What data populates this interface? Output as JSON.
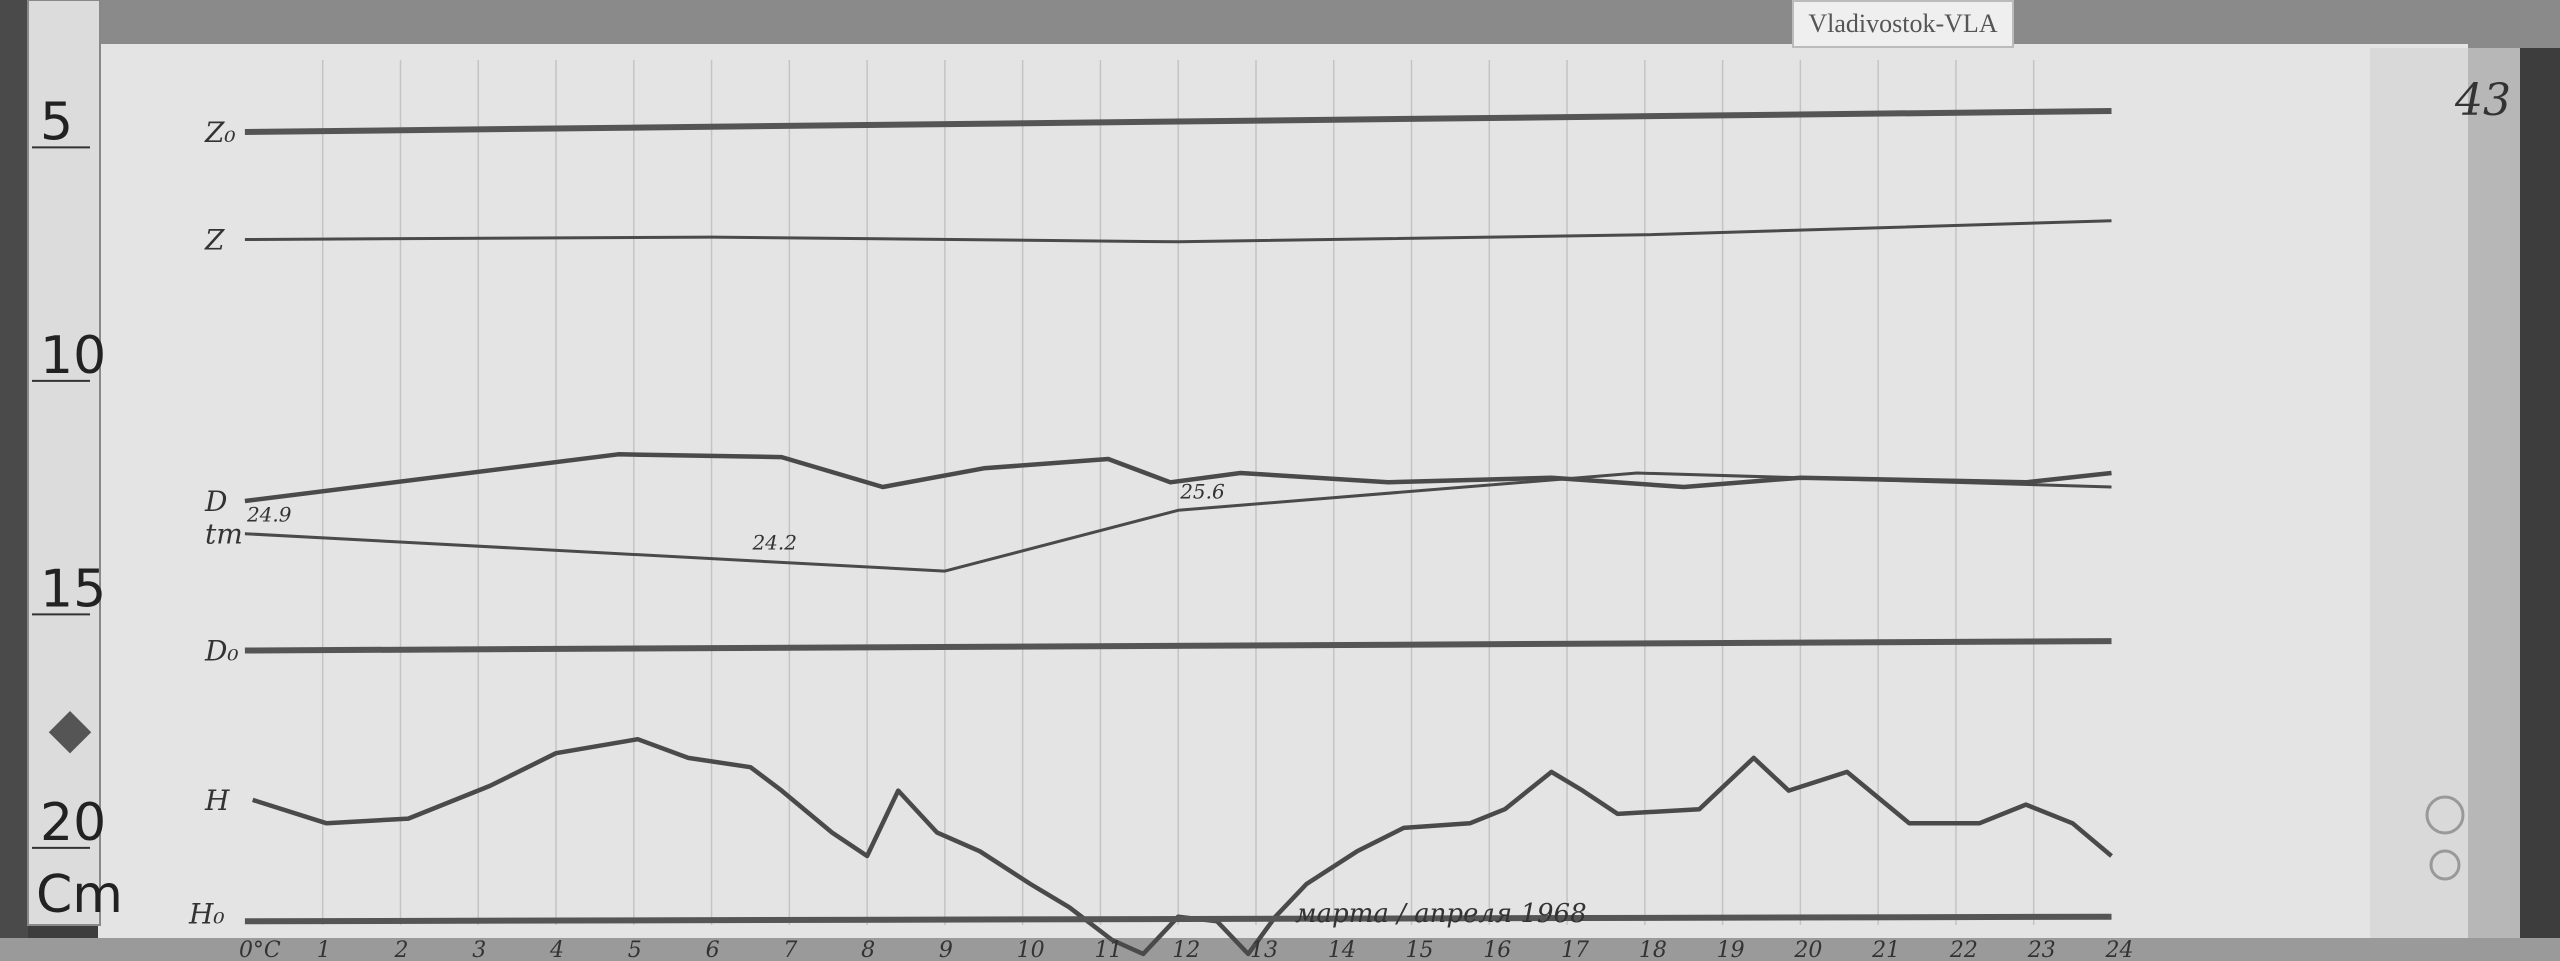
{
  "station_label": "Vladivostok-VLA",
  "page_number": "43",
  "ruler": {
    "ticks": [
      "5",
      "10",
      "15",
      "20"
    ],
    "unit": "Cm"
  },
  "date_note": "марта / апреля 1968",
  "colors": {
    "paper": "#e4e4e4",
    "trace": "#4a4a4a",
    "background": "#3a3a3a"
  },
  "chart_data": {
    "type": "line",
    "title": "",
    "xlabel": "",
    "ylabel": "",
    "x_unit": "hours",
    "y_unit": "cm (ruler)",
    "xlim": [
      0,
      24
    ],
    "ylim": [
      4,
      23
    ],
    "grid": true,
    "x_ticks": [
      "0°C",
      "1",
      "2",
      "3",
      "4",
      "5",
      "6",
      "7",
      "8",
      "9",
      "10",
      "11",
      "12",
      "13",
      "14",
      "15",
      "16",
      "17",
      "18",
      "19",
      "20",
      "21",
      "22",
      "23",
      "24"
    ],
    "series": [
      {
        "name": "Z₀",
        "kind": "baseline",
        "x": [
          0,
          24
        ],
        "y": [
          5.1,
          4.65
        ]
      },
      {
        "name": "Z",
        "x": [
          0,
          6,
          12,
          18,
          24
        ],
        "y": [
          7.4,
          7.35,
          7.45,
          7.3,
          7.0
        ]
      },
      {
        "name": "D",
        "x": [
          0,
          4.8,
          6.9,
          8.2,
          9.5,
          11.1,
          11.9,
          12.8,
          14.7,
          16.8,
          18.5,
          20,
          22.9,
          24
        ],
        "y": [
          13.0,
          12.0,
          12.06,
          12.7,
          12.3,
          12.1,
          12.6,
          12.4,
          12.6,
          12.5,
          12.7,
          12.5,
          12.6,
          12.4
        ]
      },
      {
        "name": "tm",
        "x": [
          0,
          9.0,
          12,
          17.9,
          24
        ],
        "y": [
          13.7,
          14.5,
          13.2,
          12.4,
          12.7
        ]
      },
      {
        "name": "D₀",
        "kind": "baseline",
        "x": [
          0,
          24
        ],
        "y": [
          16.2,
          16.0
        ]
      },
      {
        "name": "H",
        "x": [
          0.1,
          1.05,
          2.1,
          3.15,
          4.0,
          5.05,
          5.7,
          6.5,
          6.9,
          7.55,
          8.0,
          8.4,
          8.9,
          9.45,
          10.1,
          10.6,
          11.15,
          11.55,
          12.0,
          12.5,
          12.9,
          13.25,
          13.65,
          14.3,
          14.9,
          15.75,
          16.2,
          16.8,
          17.2,
          17.65,
          18.7,
          19.4,
          19.85,
          20.6,
          21.4,
          22.3,
          22.9,
          23.5,
          24
        ],
        "y": [
          19.4,
          19.9,
          19.8,
          19.1,
          18.4,
          18.1,
          18.5,
          18.7,
          19.2,
          20.1,
          20.6,
          19.2,
          20.1,
          20.5,
          21.2,
          21.7,
          22.4,
          22.7,
          21.9,
          22.0,
          22.7,
          21.9,
          21.2,
          20.5,
          20.0,
          19.9,
          19.6,
          18.8,
          19.2,
          19.7,
          19.6,
          18.5,
          19.2,
          18.8,
          19.9,
          19.9,
          19.5,
          19.9,
          20.6
        ]
      },
      {
        "name": "H₀",
        "kind": "baseline",
        "x": [
          0,
          24
        ],
        "y": [
          22.0,
          21.9
        ]
      }
    ],
    "annotations": [
      {
        "text": "24.9",
        "x": 0,
        "y": 13.7
      },
      {
        "text": "24.2",
        "x": 6.5,
        "y": 14.3
      },
      {
        "text": "25.6",
        "x": 12,
        "y": 13.2
      }
    ]
  }
}
